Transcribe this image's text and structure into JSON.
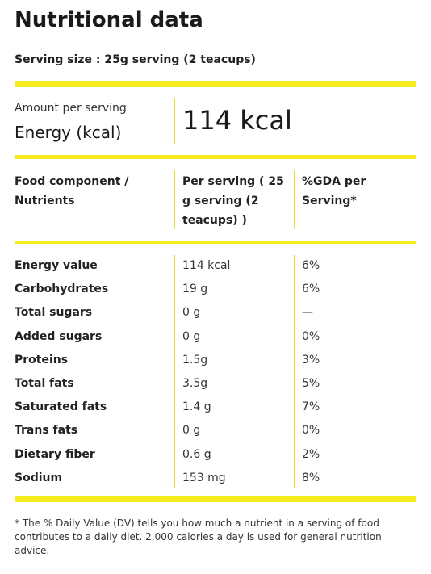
{
  "title": "Nutritional data",
  "serving_size": "Serving size : 25g serving (2 teacups)",
  "energy": {
    "amount_label": "Amount per serving",
    "label": "Energy (kcal)",
    "value": "114 kcal"
  },
  "table": {
    "headers": [
      "Food component / Nutrients",
      "Per serving ( 25 g serving (2 teacups) )",
      "%GDA per Serving*"
    ],
    "rows": [
      {
        "name": "Energy value",
        "per_serving": "114 kcal",
        "gda": "6%"
      },
      {
        "name": "Carbohydrates",
        "per_serving": "19 g",
        "gda": "6%"
      },
      {
        "name": "Total sugars",
        "per_serving": "0 g",
        "gda": "—"
      },
      {
        "name": "Added sugars",
        "per_serving": "0 g",
        "gda": "0%"
      },
      {
        "name": "Proteins",
        "per_serving": "1.5g",
        "gda": "3%"
      },
      {
        "name": "Total fats",
        "per_serving": "3.5g",
        "gda": "5%"
      },
      {
        "name": "Saturated fats",
        "per_serving": "1.4 g",
        "gda": "7%"
      },
      {
        "name": "Trans fats",
        "per_serving": "0 g",
        "gda": "0%"
      },
      {
        "name": "Dietary fiber",
        "per_serving": "0.6 g",
        "gda": "2%"
      },
      {
        "name": "Sodium",
        "per_serving": "153 mg",
        "gda": "8%"
      }
    ]
  },
  "footnote": "* The % Daily Value (DV) tells you how much a nutrient in a serving of food contributes to a daily diet. 2,000 calories a day is used for general nutrition advice.",
  "colors": {
    "accent": "#f5eb1f",
    "divider": "#e4da3a",
    "text": "#222222"
  }
}
